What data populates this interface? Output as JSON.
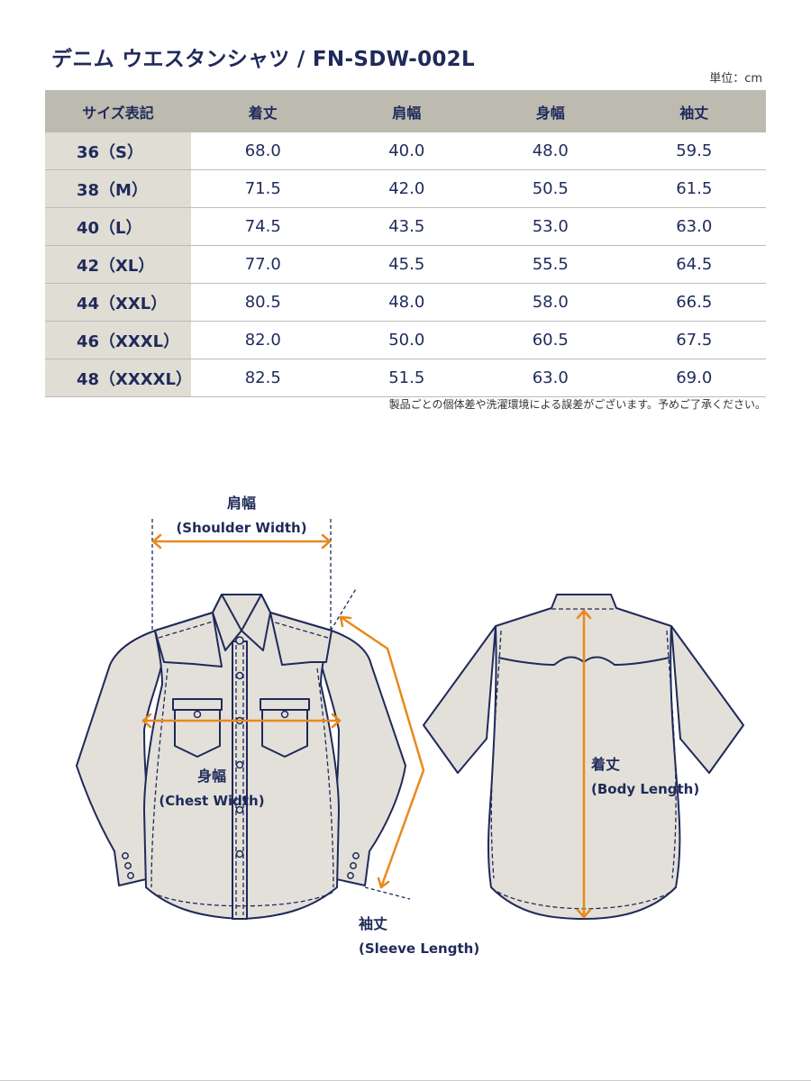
{
  "title": "デニム ウエスタンシャツ / FN-SDW-002L",
  "unit_label": "単位：cm",
  "table": {
    "headers": [
      "サイズ表記",
      "着丈",
      "肩幅",
      "身幅",
      "袖丈"
    ],
    "rows": [
      [
        "36（S）",
        "68.0",
        "40.0",
        "48.0",
        "59.5"
      ],
      [
        "38（M）",
        "71.5",
        "42.0",
        "50.5",
        "61.5"
      ],
      [
        "40（L）",
        "74.5",
        "43.5",
        "53.0",
        "63.0"
      ],
      [
        "42（XL）",
        "77.0",
        "45.5",
        "55.5",
        "64.5"
      ],
      [
        "44（XXL）",
        "80.5",
        "48.0",
        "58.0",
        "66.5"
      ],
      [
        "46（XXXL）",
        "82.0",
        "50.0",
        "60.5",
        "67.5"
      ],
      [
        "48（XXXXL）",
        "82.5",
        "51.5",
        "63.0",
        "69.0"
      ]
    ]
  },
  "note": "製品ごとの個体差や洗濯環境による誤差がございます。予めご了承ください。",
  "diagram": {
    "shoulder": {
      "jp": "肩幅",
      "en": "(Shoulder Width)"
    },
    "chest": {
      "jp": "身幅",
      "en": "(Chest Width)"
    },
    "sleeve": {
      "jp": "袖丈",
      "en": "(Sleeve Length)"
    },
    "body": {
      "jp": "着丈",
      "en": "(Body Length)"
    }
  },
  "colors": {
    "navy": "#1f2a5a",
    "header_bg": "#bdbab0",
    "size_bg": "#e0ddd5",
    "fabric": "#e3e0d9",
    "measure": "#e8891e"
  }
}
